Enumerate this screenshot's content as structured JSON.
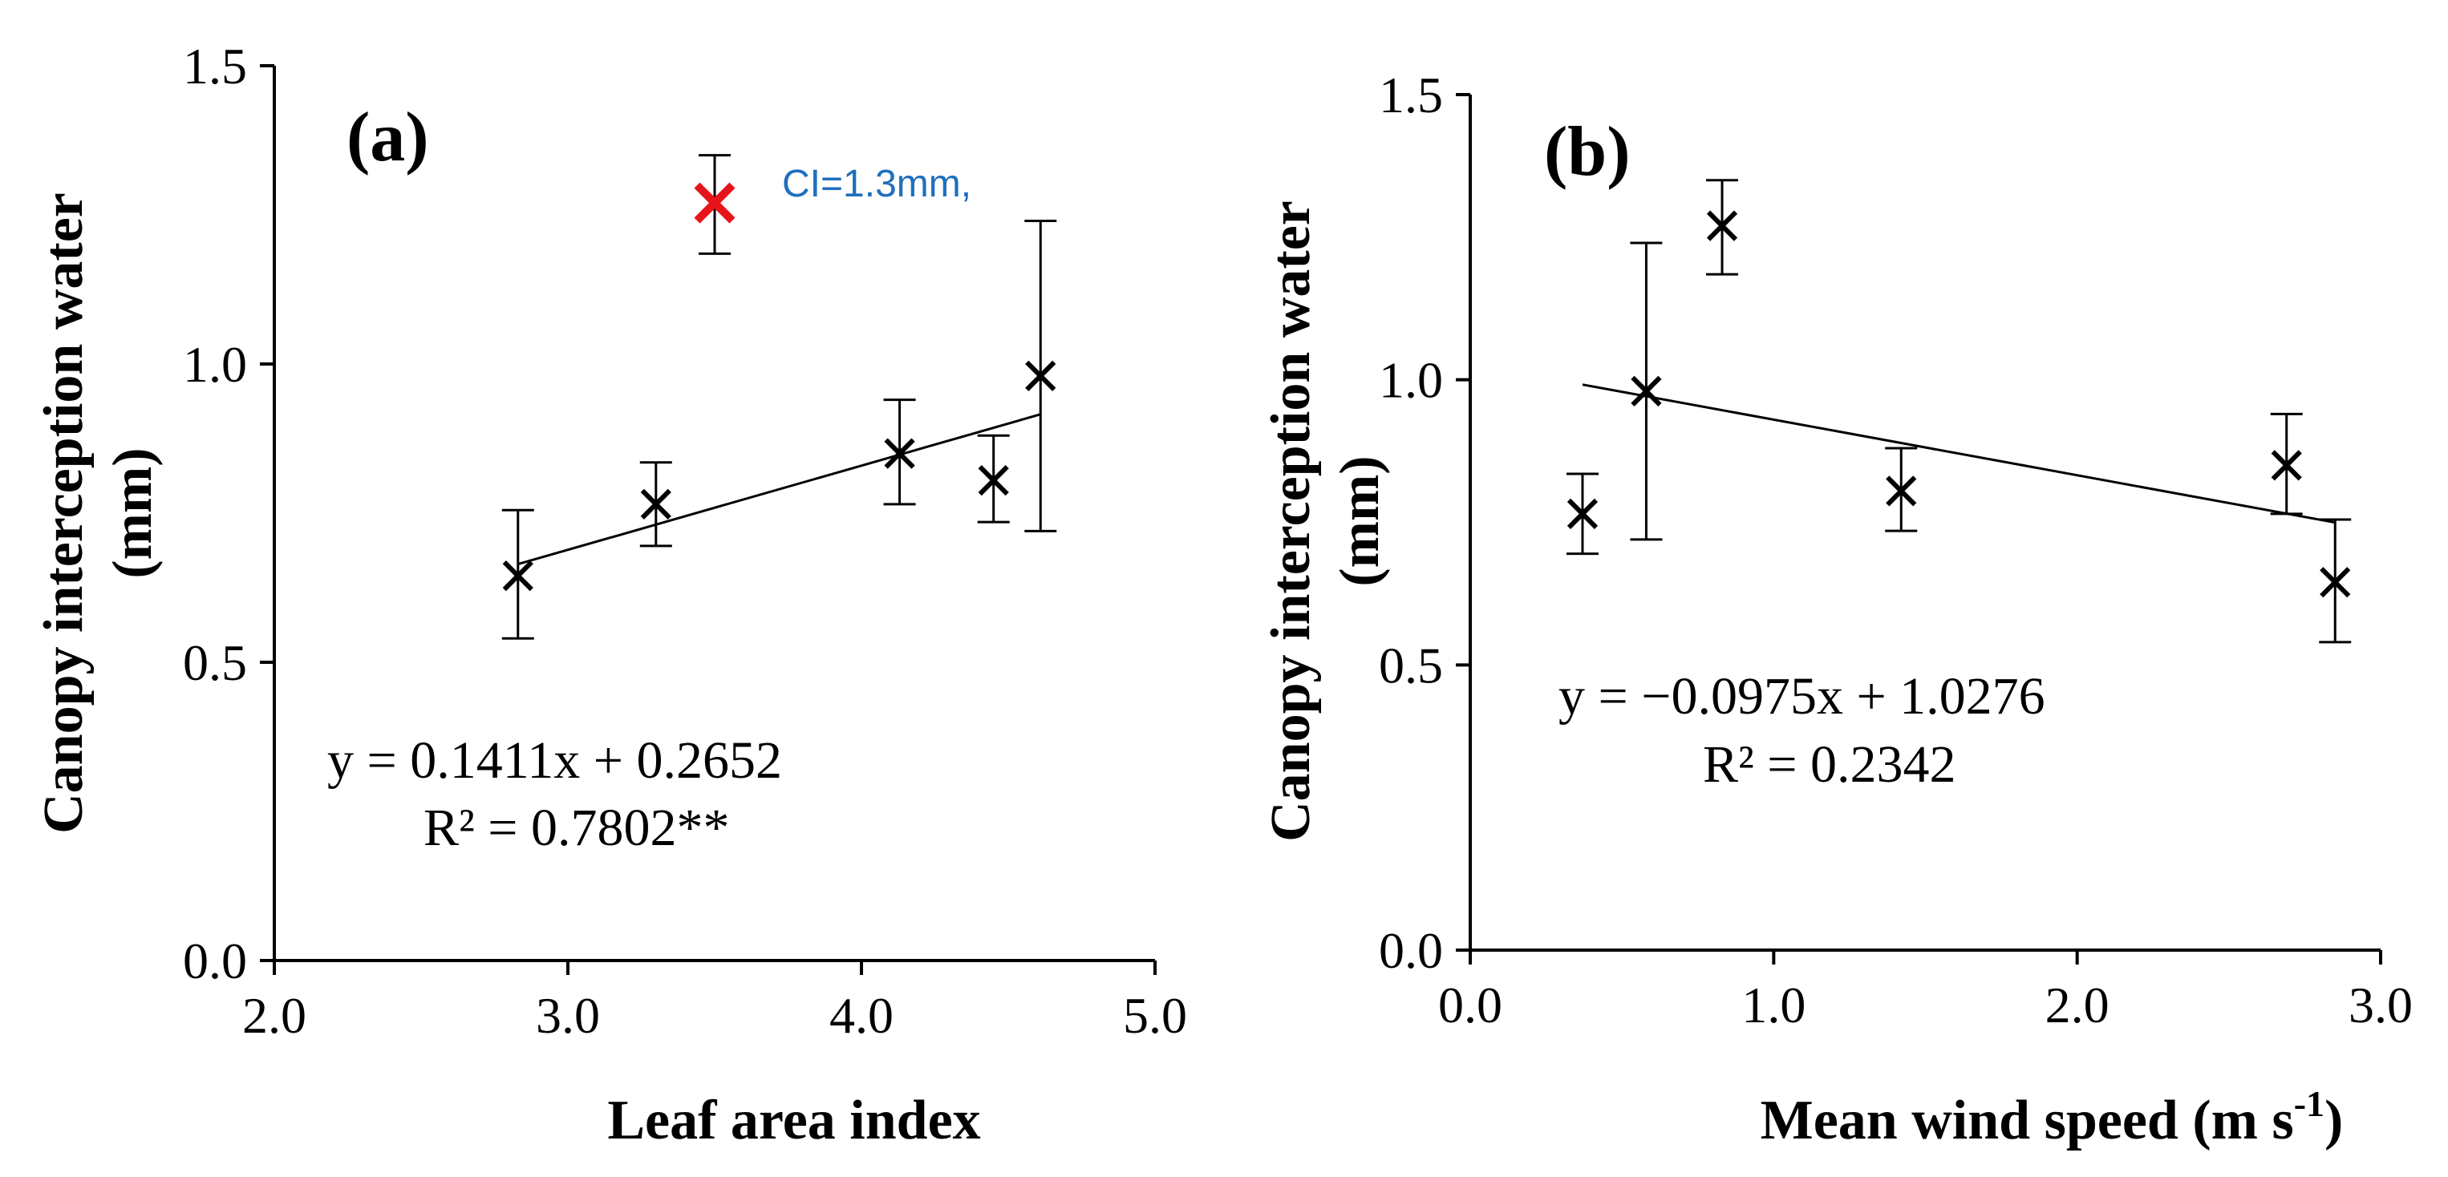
{
  "chart_data": [
    {
      "type": "scatter",
      "panel_label": "(a)",
      "xlabel": "Leaf area index",
      "ylabel_line1": "Canopy interception water",
      "ylabel_line2": "(mm)",
      "xlim": [
        2.0,
        5.0
      ],
      "ylim": [
        0.0,
        1.5
      ],
      "xticks": [
        "2.0",
        "3.0",
        "4.0",
        "5.0"
      ],
      "yticks": [
        "0.0",
        "0.5",
        "1.0",
        "1.5"
      ],
      "grid": false,
      "points": [
        {
          "x": 2.83,
          "y": 0.645,
          "err_low": 0.54,
          "err_high": 0.755,
          "highlight": false
        },
        {
          "x": 3.3,
          "y": 0.765,
          "err_low": 0.695,
          "err_high": 0.835,
          "highlight": false
        },
        {
          "x": 4.13,
          "y": 0.85,
          "err_low": 0.765,
          "err_high": 0.94,
          "highlight": false
        },
        {
          "x": 4.45,
          "y": 0.805,
          "err_low": 0.735,
          "err_high": 0.88,
          "highlight": false
        },
        {
          "x": 4.61,
          "y": 0.98,
          "err_low": 0.72,
          "err_high": 1.24,
          "highlight": false
        },
        {
          "x": 3.5,
          "y": 1.27,
          "err_low": 1.185,
          "err_high": 1.35,
          "highlight": true
        }
      ],
      "trendline": {
        "x_start": 2.83,
        "x_end": 4.61,
        "slope": 0.1411,
        "intercept": 0.2652
      },
      "equation": "y = 0.1411x + 0.2652",
      "r_squared": "R² = 0.7802**",
      "annotation": "CI=1.3mm,",
      "colors": {
        "highlight": "#e8141c",
        "annotation": "#1f6fbf",
        "marker": "#000000"
      }
    },
    {
      "type": "scatter",
      "panel_label": "(b)",
      "xlabel_main": "Mean wind speed (m s",
      "xlabel_sup": "-1",
      "xlabel_close": ")",
      "ylabel_line1": "Canopy interception water",
      "ylabel_line2": "(mm)",
      "xlim": [
        0.0,
        3.0
      ],
      "ylim": [
        0.0,
        1.5
      ],
      "xticks": [
        "0.0",
        "1.0",
        "2.0",
        "3.0"
      ],
      "yticks": [
        "0.0",
        "0.5",
        "1.0",
        "1.5"
      ],
      "grid": false,
      "points": [
        {
          "x": 0.37,
          "y": 0.765,
          "err_low": 0.695,
          "err_high": 0.835
        },
        {
          "x": 0.58,
          "y": 0.98,
          "err_low": 0.72,
          "err_high": 1.24
        },
        {
          "x": 0.83,
          "y": 1.27,
          "err_low": 1.185,
          "err_high": 1.35
        },
        {
          "x": 1.42,
          "y": 0.805,
          "err_low": 0.735,
          "err_high": 0.88
        },
        {
          "x": 2.69,
          "y": 0.85,
          "err_low": 0.765,
          "err_high": 0.94
        },
        {
          "x": 2.85,
          "y": 0.645,
          "err_low": 0.54,
          "err_high": 0.755
        }
      ],
      "trendline": {
        "x_start": 0.37,
        "x_end": 2.85,
        "slope": -0.0975,
        "intercept": 1.0276
      },
      "equation": "y = −0.0975x + 1.0276",
      "r_squared": "R² = 0.2342",
      "colors": {
        "marker": "#000000"
      }
    }
  ]
}
